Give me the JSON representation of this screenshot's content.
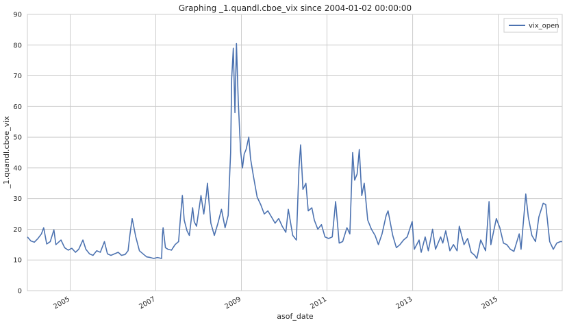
{
  "chart_data": {
    "type": "line",
    "title": "Graphing _1.quandl.cboe_vix since 2004-01-02 00:00:00",
    "xlabel": "asof_date",
    "ylabel": "_1.quandl.cboe_vix",
    "xlim": [
      "2004-01-02",
      "2016-06-30"
    ],
    "ylim": [
      0,
      90
    ],
    "yticks": [
      0,
      10,
      20,
      30,
      40,
      50,
      60,
      70,
      80,
      90
    ],
    "xticks": [
      {
        "label": "2005",
        "date": "2005-01-01"
      },
      {
        "label": "2007",
        "date": "2007-01-01"
      },
      {
        "label": "2009",
        "date": "2009-01-01"
      },
      {
        "label": "2011",
        "date": "2011-01-01"
      },
      {
        "label": "2013",
        "date": "2013-01-01"
      },
      {
        "label": "2015",
        "date": "2015-01-01"
      }
    ],
    "grid": true,
    "legend_position": "top-right",
    "series": [
      {
        "name": "vix_open",
        "color": "#4c72b0",
        "points": [
          [
            "2004-01-02",
            17.5
          ],
          [
            "2004-02-01",
            16.2
          ],
          [
            "2004-03-01",
            15.8
          ],
          [
            "2004-04-01",
            17.0
          ],
          [
            "2004-05-01",
            18.5
          ],
          [
            "2004-05-20",
            20.5
          ],
          [
            "2004-06-15",
            15.2
          ],
          [
            "2004-07-15",
            16.0
          ],
          [
            "2004-08-15",
            19.8
          ],
          [
            "2004-09-01",
            15.0
          ],
          [
            "2004-10-15",
            16.5
          ],
          [
            "2004-11-15",
            14.0
          ],
          [
            "2004-12-15",
            13.2
          ],
          [
            "2005-01-15",
            13.8
          ],
          [
            "2005-02-15",
            12.5
          ],
          [
            "2005-03-15",
            13.5
          ],
          [
            "2005-04-20",
            16.5
          ],
          [
            "2005-05-15",
            13.5
          ],
          [
            "2005-06-15",
            12.0
          ],
          [
            "2005-07-15",
            11.5
          ],
          [
            "2005-08-15",
            13.0
          ],
          [
            "2005-09-15",
            12.5
          ],
          [
            "2005-10-20",
            16.0
          ],
          [
            "2005-11-15",
            12.0
          ],
          [
            "2005-12-15",
            11.5
          ],
          [
            "2006-01-15",
            12.0
          ],
          [
            "2006-02-15",
            12.5
          ],
          [
            "2006-03-15",
            11.5
          ],
          [
            "2006-04-15",
            11.8
          ],
          [
            "2006-05-10",
            13.0
          ],
          [
            "2006-05-25",
            18.0
          ],
          [
            "2006-06-14",
            23.5
          ],
          [
            "2006-07-15",
            17.5
          ],
          [
            "2006-08-15",
            13.0
          ],
          [
            "2006-09-15",
            12.0
          ],
          [
            "2006-10-15",
            11.0
          ],
          [
            "2006-11-15",
            10.8
          ],
          [
            "2006-12-15",
            10.5
          ],
          [
            "2007-01-15",
            10.8
          ],
          [
            "2007-02-20",
            10.5
          ],
          [
            "2007-02-28",
            18.5
          ],
          [
            "2007-03-05",
            20.5
          ],
          [
            "2007-03-25",
            14.0
          ],
          [
            "2007-04-15",
            13.5
          ],
          [
            "2007-05-15",
            13.2
          ],
          [
            "2007-06-15",
            15.0
          ],
          [
            "2007-07-15",
            16.0
          ],
          [
            "2007-07-30",
            23.5
          ],
          [
            "2007-08-16",
            31.0
          ],
          [
            "2007-09-01",
            23.0
          ],
          [
            "2007-09-25",
            19.5
          ],
          [
            "2007-10-15",
            18.0
          ],
          [
            "2007-11-12",
            27.0
          ],
          [
            "2007-11-25",
            22.5
          ],
          [
            "2007-12-15",
            21.0
          ],
          [
            "2008-01-22",
            31.0
          ],
          [
            "2008-02-15",
            25.0
          ],
          [
            "2008-03-10",
            32.0
          ],
          [
            "2008-03-17",
            35.0
          ],
          [
            "2008-04-15",
            22.0
          ],
          [
            "2008-05-15",
            18.0
          ],
          [
            "2008-06-15",
            22.0
          ],
          [
            "2008-07-15",
            26.5
          ],
          [
            "2008-08-15",
            20.5
          ],
          [
            "2008-09-10",
            24.5
          ],
          [
            "2008-09-20",
            35.0
          ],
          [
            "2008-10-01",
            45.0
          ],
          [
            "2008-10-10",
            69.0
          ],
          [
            "2008-10-24",
            79.0
          ],
          [
            "2008-11-07",
            58.0
          ],
          [
            "2008-11-20",
            80.5
          ],
          [
            "2008-12-05",
            62.0
          ],
          [
            "2008-12-25",
            45.5
          ],
          [
            "2009-01-10",
            40.0
          ],
          [
            "2009-01-25",
            44.5
          ],
          [
            "2009-02-10",
            46.0
          ],
          [
            "2009-03-05",
            50.0
          ],
          [
            "2009-03-20",
            43.0
          ],
          [
            "2009-04-15",
            37.0
          ],
          [
            "2009-05-15",
            30.5
          ],
          [
            "2009-06-15",
            28.0
          ],
          [
            "2009-07-15",
            25.0
          ],
          [
            "2009-08-15",
            26.0
          ],
          [
            "2009-09-15",
            24.0
          ],
          [
            "2009-10-15",
            22.0
          ],
          [
            "2009-11-15",
            23.5
          ],
          [
            "2009-12-15",
            21.0
          ],
          [
            "2010-01-15",
            19.0
          ],
          [
            "2010-02-05",
            26.5
          ],
          [
            "2010-03-15",
            18.0
          ],
          [
            "2010-04-15",
            16.5
          ],
          [
            "2010-05-07",
            40.0
          ],
          [
            "2010-05-21",
            47.5
          ],
          [
            "2010-06-10",
            33.0
          ],
          [
            "2010-07-05",
            35.0
          ],
          [
            "2010-07-25",
            26.0
          ],
          [
            "2010-08-25",
            27.0
          ],
          [
            "2010-09-15",
            23.0
          ],
          [
            "2010-10-15",
            20.0
          ],
          [
            "2010-11-15",
            21.5
          ],
          [
            "2010-12-15",
            17.5
          ],
          [
            "2011-01-15",
            17.0
          ],
          [
            "2011-02-15",
            17.5
          ],
          [
            "2011-03-16",
            29.0
          ],
          [
            "2011-04-15",
            15.5
          ],
          [
            "2011-05-15",
            16.0
          ],
          [
            "2011-06-20",
            20.5
          ],
          [
            "2011-07-15",
            18.5
          ],
          [
            "2011-08-08",
            45.0
          ],
          [
            "2011-08-25",
            36.0
          ],
          [
            "2011-09-15",
            38.0
          ],
          [
            "2011-10-04",
            46.0
          ],
          [
            "2011-10-25",
            31.0
          ],
          [
            "2011-11-15",
            35.0
          ],
          [
            "2011-12-15",
            23.0
          ],
          [
            "2012-01-15",
            20.0
          ],
          [
            "2012-02-15",
            18.0
          ],
          [
            "2012-03-15",
            15.0
          ],
          [
            "2012-04-15",
            18.5
          ],
          [
            "2012-05-20",
            24.5
          ],
          [
            "2012-06-05",
            26.0
          ],
          [
            "2012-07-15",
            18.0
          ],
          [
            "2012-08-15",
            14.0
          ],
          [
            "2012-09-15",
            15.0
          ],
          [
            "2012-10-15",
            16.5
          ],
          [
            "2012-11-15",
            17.5
          ],
          [
            "2012-12-28",
            22.5
          ],
          [
            "2013-01-15",
            13.5
          ],
          [
            "2013-02-25",
            16.5
          ],
          [
            "2013-03-15",
            12.5
          ],
          [
            "2013-04-18",
            17.5
          ],
          [
            "2013-05-15",
            13.0
          ],
          [
            "2013-06-20",
            20.0
          ],
          [
            "2013-07-15",
            13.5
          ],
          [
            "2013-08-28",
            17.5
          ],
          [
            "2013-09-15",
            15.5
          ],
          [
            "2013-10-10",
            19.5
          ],
          [
            "2013-11-15",
            13.0
          ],
          [
            "2013-12-15",
            15.0
          ],
          [
            "2014-01-15",
            13.0
          ],
          [
            "2014-02-03",
            21.0
          ],
          [
            "2014-03-15",
            15.0
          ],
          [
            "2014-04-15",
            17.0
          ],
          [
            "2014-05-15",
            12.5
          ],
          [
            "2014-06-15",
            11.5
          ],
          [
            "2014-07-03",
            10.5
          ],
          [
            "2014-08-05",
            16.5
          ],
          [
            "2014-09-15",
            13.0
          ],
          [
            "2014-10-15",
            29.0
          ],
          [
            "2014-10-30",
            15.0
          ],
          [
            "2014-12-16",
            23.5
          ],
          [
            "2015-01-15",
            20.5
          ],
          [
            "2015-02-15",
            15.5
          ],
          [
            "2015-03-15",
            15.0
          ],
          [
            "2015-04-15",
            13.5
          ],
          [
            "2015-05-15",
            12.8
          ],
          [
            "2015-06-29",
            18.5
          ],
          [
            "2015-07-15",
            13.5
          ],
          [
            "2015-08-24",
            31.5
          ],
          [
            "2015-09-15",
            24.0
          ],
          [
            "2015-10-15",
            18.0
          ],
          [
            "2015-11-15",
            16.0
          ],
          [
            "2015-12-14",
            24.0
          ],
          [
            "2016-01-20",
            28.5
          ],
          [
            "2016-02-11",
            28.0
          ],
          [
            "2016-03-15",
            16.0
          ],
          [
            "2016-04-15",
            13.5
          ],
          [
            "2016-05-15",
            15.5
          ],
          [
            "2016-06-15",
            16.0
          ],
          [
            "2016-06-30",
            16.0
          ]
        ]
      }
    ]
  }
}
